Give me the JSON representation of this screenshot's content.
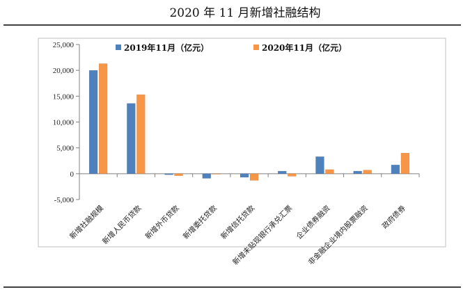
{
  "chart_data": {
    "type": "bar",
    "title": "2020 年 11 月新增社融结构",
    "categories": [
      "新增社融规模",
      "新增人民币贷款",
      "新增外币贷款",
      "新增委托贷款",
      "新增信托贷款",
      "新增未贴现银行承兑汇票",
      "企业债券融资",
      "非金融企业境内股票融资",
      "政府债券"
    ],
    "series": [
      {
        "name": "2019年11月（亿元）",
        "color": "#4F81BD",
        "values": [
          20000,
          13600,
          -200,
          -900,
          -700,
          500,
          3300,
          500,
          1700
        ]
      },
      {
        "name": "2020年11月（亿元）",
        "color": "#F79646",
        "values": [
          21300,
          15300,
          -400,
          -100,
          -1300,
          -500,
          800,
          700,
          4000
        ]
      }
    ],
    "ylim": [
      -5000,
      25000
    ],
    "yticks": [
      "-5,000",
      "0",
      "5,000",
      "10,000",
      "15,000",
      "20,000",
      "25,000"
    ],
    "ytick_values": [
      -5000,
      0,
      5000,
      10000,
      15000,
      20000,
      25000
    ],
    "grid": false,
    "legend_position": "top"
  }
}
